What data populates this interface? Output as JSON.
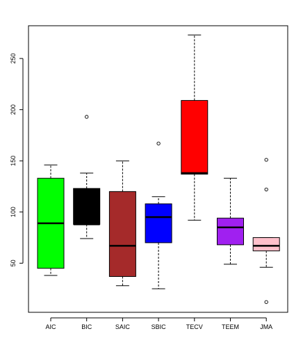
{
  "chart_data": {
    "type": "boxplot",
    "title": "",
    "xlabel": "",
    "ylabel": "",
    "ylim": [
      2,
      282
    ],
    "yticks": [
      50,
      100,
      150,
      200,
      250
    ],
    "categories": [
      "AIC",
      "BIC",
      "SAIC",
      "SBIC",
      "TECV",
      "TEEM",
      "JMA"
    ],
    "boxes": [
      {
        "name": "AIC",
        "color": "#00ff00",
        "whisker_low": 38,
        "q1": 45,
        "median": 89,
        "q3": 133,
        "whisker_high": 146,
        "outliers": []
      },
      {
        "name": "BIC",
        "color": "#000000",
        "whisker_low": 74,
        "q1": 88,
        "median": 88,
        "q3": 123,
        "whisker_high": 138,
        "outliers": [
          193
        ]
      },
      {
        "name": "SAIC",
        "color": "#a52a2a",
        "whisker_low": 28,
        "q1": 37,
        "median": 67,
        "q3": 120,
        "whisker_high": 150,
        "outliers": []
      },
      {
        "name": "SBIC",
        "color": "#0000ff",
        "whisker_low": 25,
        "q1": 70,
        "median": 95,
        "q3": 108,
        "whisker_high": 115,
        "outliers": [
          167
        ]
      },
      {
        "name": "TECV",
        "color": "#ff0000",
        "whisker_low": 92,
        "q1": 137,
        "median": 138,
        "q3": 209,
        "whisker_high": 273,
        "outliers": []
      },
      {
        "name": "TEEM",
        "color": "#a020f0",
        "whisker_low": 49,
        "q1": 68,
        "median": 85,
        "q3": 94,
        "whisker_high": 133,
        "outliers": []
      },
      {
        "name": "JMA",
        "color": "#ffc0cb",
        "whisker_low": 46,
        "q1": 62,
        "median": 67,
        "q3": 75,
        "whisker_high": 75,
        "outliers": [
          12,
          122,
          151
        ]
      }
    ],
    "grid": false,
    "legend": "none"
  }
}
